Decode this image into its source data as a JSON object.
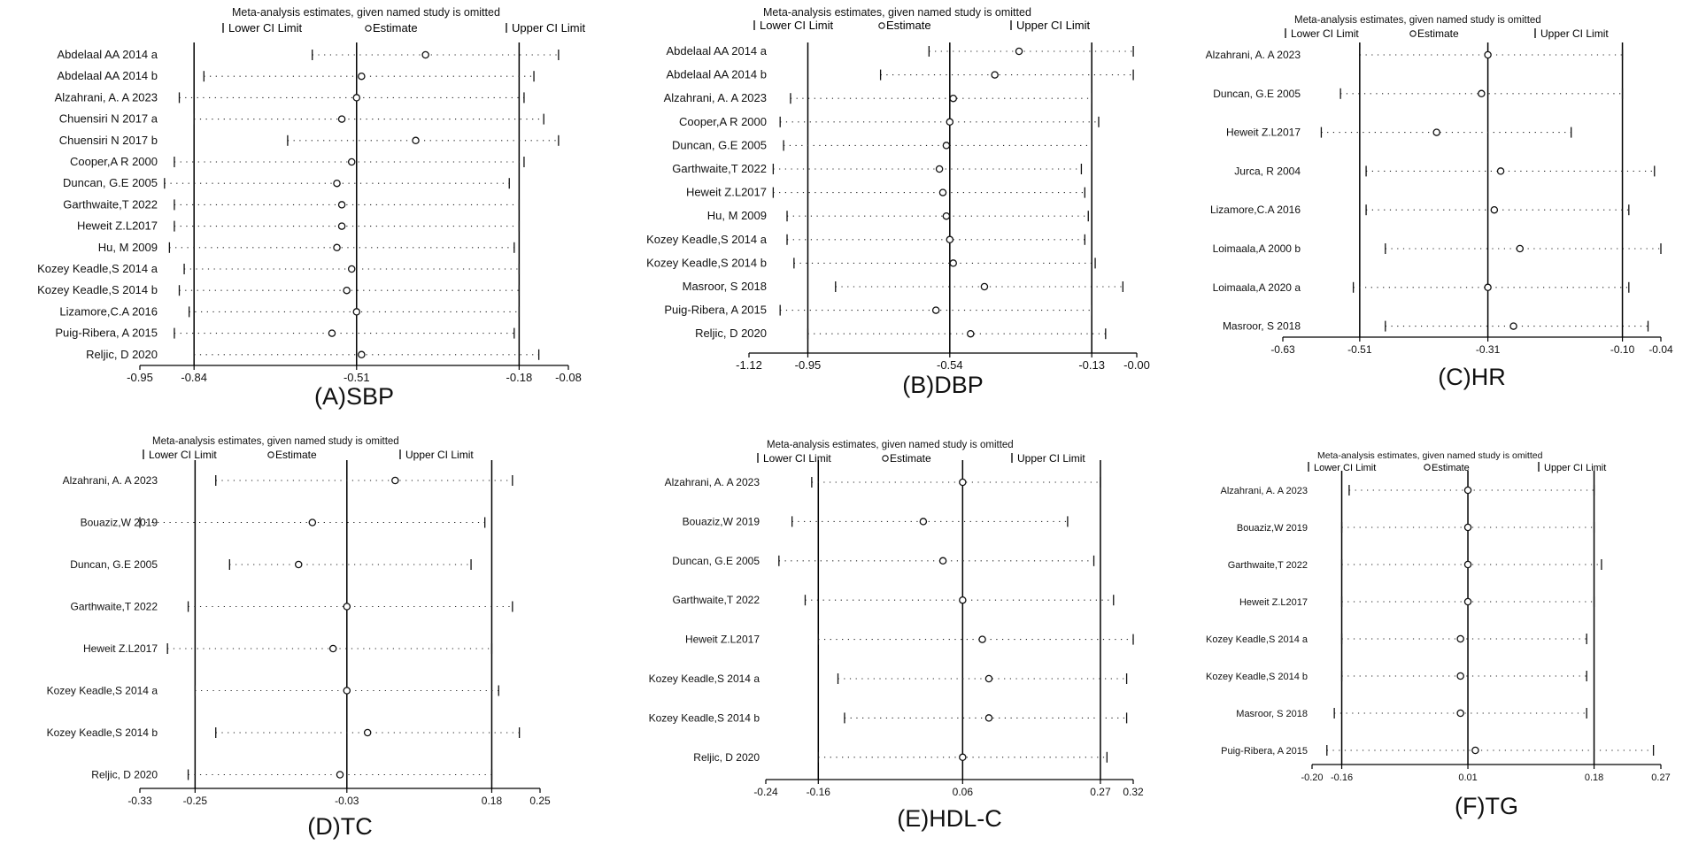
{
  "figure": {
    "header": "Meta-analysis estimates, given named study is omitted",
    "legend": {
      "lower": "Lower CI Limit",
      "estimate": "Estimate",
      "upper": "Upper CI Limit"
    }
  },
  "chart_data": [
    {
      "type": "scatter",
      "panel_label": "(A)SBP",
      "xlim": [
        -0.95,
        -0.08
      ],
      "xticks": [
        -0.95,
        -0.84,
        -0.51,
        -0.18,
        -0.08
      ],
      "xtick_labels": [
        "-0.95",
        "-0.84",
        "-0.51",
        "-0.18",
        "-0.08"
      ],
      "reference_lines": [
        -0.84,
        -0.51,
        -0.18
      ],
      "studies": [
        {
          "label": "Abdelaal AA 2014 a",
          "lower": -0.6,
          "estimate": -0.37,
          "upper": -0.1
        },
        {
          "label": "Abdelaal AA 2014 b",
          "lower": -0.82,
          "estimate": -0.5,
          "upper": -0.15
        },
        {
          "label": "Alzahrani, A. A 2023",
          "lower": -0.87,
          "estimate": -0.51,
          "upper": -0.17
        },
        {
          "label": "Chuensiri N 2017 a",
          "lower": -0.84,
          "estimate": -0.54,
          "upper": -0.13
        },
        {
          "label": "Chuensiri N 2017 b",
          "lower": -0.65,
          "estimate": -0.39,
          "upper": -0.1
        },
        {
          "label": "Cooper,A R 2000",
          "lower": -0.88,
          "estimate": -0.52,
          "upper": -0.17
        },
        {
          "label": "Duncan, G.E 2005",
          "lower": -0.9,
          "estimate": -0.55,
          "upper": -0.2
        },
        {
          "label": "Garthwaite,T 2022",
          "lower": -0.88,
          "estimate": -0.54,
          "upper": -0.18
        },
        {
          "label": "Heweit Z.L2017",
          "lower": -0.88,
          "estimate": -0.54,
          "upper": -0.18
        },
        {
          "label": "Hu, M 2009",
          "lower": -0.89,
          "estimate": -0.55,
          "upper": -0.19
        },
        {
          "label": "Kozey Keadle,S 2014 a",
          "lower": -0.86,
          "estimate": -0.52,
          "upper": -0.18
        },
        {
          "label": "Kozey Keadle,S 2014 b",
          "lower": -0.87,
          "estimate": -0.53,
          "upper": -0.18
        },
        {
          "label": "Lizamore,C.A 2016",
          "lower": -0.85,
          "estimate": -0.51,
          "upper": -0.18
        },
        {
          "label": "Puig-Ribera, A 2015",
          "lower": -0.88,
          "estimate": -0.56,
          "upper": -0.19
        },
        {
          "label": "Reljic, D 2020",
          "lower": -0.84,
          "estimate": -0.5,
          "upper": -0.14
        }
      ]
    },
    {
      "type": "scatter",
      "panel_label": "(B)DBP",
      "xlim": [
        -1.12,
        0.0
      ],
      "xticks": [
        -1.12,
        -0.95,
        -0.54,
        -0.13,
        0.0
      ],
      "xtick_labels": [
        "-1.12",
        "-0.95",
        "-0.54",
        "-0.13",
        "-0.00"
      ],
      "reference_lines": [
        -0.95,
        -0.54,
        -0.13
      ],
      "studies": [
        {
          "label": "Abdelaal AA 2014 a",
          "lower": -0.6,
          "estimate": -0.34,
          "upper": -0.01
        },
        {
          "label": "Abdelaal AA 2014 b",
          "lower": -0.74,
          "estimate": -0.41,
          "upper": -0.01
        },
        {
          "label": "Alzahrani, A. A 2023",
          "lower": -1.0,
          "estimate": -0.53,
          "upper": -0.13
        },
        {
          "label": "Cooper,A R 2000",
          "lower": -1.03,
          "estimate": -0.54,
          "upper": -0.11
        },
        {
          "label": "Duncan, G.E 2005",
          "lower": -1.02,
          "estimate": -0.55,
          "upper": -0.13
        },
        {
          "label": "Garthwaite,T 2022",
          "lower": -1.05,
          "estimate": -0.57,
          "upper": -0.16
        },
        {
          "label": "Heweit Z.L2017",
          "lower": -1.05,
          "estimate": -0.56,
          "upper": -0.15
        },
        {
          "label": "Hu, M 2009",
          "lower": -1.01,
          "estimate": -0.55,
          "upper": -0.14
        },
        {
          "label": "Kozey Keadle,S 2014 a",
          "lower": -1.01,
          "estimate": -0.54,
          "upper": -0.15
        },
        {
          "label": "Kozey Keadle,S 2014 b",
          "lower": -0.99,
          "estimate": -0.53,
          "upper": -0.12
        },
        {
          "label": "Masroor, S 2018",
          "lower": -0.87,
          "estimate": -0.44,
          "upper": -0.04
        },
        {
          "label": "Puig-Ribera, A 2015",
          "lower": -1.03,
          "estimate": -0.58,
          "upper": -0.13
        },
        {
          "label": "Reljic, D 2020",
          "lower": -0.95,
          "estimate": -0.48,
          "upper": -0.09
        }
      ]
    },
    {
      "type": "scatter",
      "panel_label": "(C)HR",
      "xlim": [
        -0.63,
        -0.04
      ],
      "xticks": [
        -0.63,
        -0.51,
        -0.31,
        -0.1,
        -0.04
      ],
      "xtick_labels": [
        "-0.63",
        "-0.51",
        "-0.31",
        "-0.10",
        "-0.04"
      ],
      "reference_lines": [
        -0.51,
        -0.31,
        -0.1
      ],
      "studies": [
        {
          "label": "Alzahrani, A. A 2023",
          "lower": -0.51,
          "estimate": -0.31,
          "upper": -0.1
        },
        {
          "label": "Duncan, G.E 2005",
          "lower": -0.54,
          "estimate": -0.32,
          "upper": -0.1
        },
        {
          "label": "Heweit Z.L2017",
          "lower": -0.57,
          "estimate": -0.39,
          "upper": -0.18
        },
        {
          "label": "Jurca, R 2004",
          "lower": -0.5,
          "estimate": -0.29,
          "upper": -0.05
        },
        {
          "label": "Lizamore,C.A 2016",
          "lower": -0.5,
          "estimate": -0.3,
          "upper": -0.09
        },
        {
          "label": "Loimaala,A 2000 b",
          "lower": -0.47,
          "estimate": -0.26,
          "upper": -0.04
        },
        {
          "label": "Loimaala,A 2020 a",
          "lower": -0.52,
          "estimate": -0.31,
          "upper": -0.09
        },
        {
          "label": "Masroor, S 2018",
          "lower": -0.47,
          "estimate": -0.27,
          "upper": -0.06
        }
      ]
    },
    {
      "type": "scatter",
      "panel_label": "(D)TC",
      "xlim": [
        -0.33,
        0.25
      ],
      "xticks": [
        -0.33,
        -0.25,
        -0.03,
        0.18,
        0.25
      ],
      "xtick_labels": [
        "-0.33",
        "-0.25",
        "-0.03",
        "0.18",
        "0.25"
      ],
      "reference_lines": [
        -0.25,
        -0.03,
        0.18
      ],
      "studies": [
        {
          "label": "Alzahrani, A. A 2023",
          "lower": -0.22,
          "estimate": 0.04,
          "upper": 0.21
        },
        {
          "label": "Bouaziz,W 2019",
          "lower": -0.33,
          "estimate": -0.08,
          "upper": 0.17
        },
        {
          "label": "Duncan, G.E 2005",
          "lower": -0.2,
          "estimate": -0.1,
          "upper": 0.15
        },
        {
          "label": "Garthwaite,T 2022",
          "lower": -0.26,
          "estimate": -0.03,
          "upper": 0.21
        },
        {
          "label": "Heweit Z.L2017",
          "lower": -0.29,
          "estimate": -0.05,
          "upper": 0.18
        },
        {
          "label": "Kozey Keadle,S 2014 a",
          "lower": -0.25,
          "estimate": -0.03,
          "upper": 0.19
        },
        {
          "label": "Kozey Keadle,S 2014 b",
          "lower": -0.22,
          "estimate": 0.0,
          "upper": 0.22
        },
        {
          "label": "Reljic, D 2020",
          "lower": -0.26,
          "estimate": -0.04,
          "upper": 0.18
        }
      ]
    },
    {
      "type": "scatter",
      "panel_label": "(E)HDL-C",
      "xlim": [
        -0.24,
        0.32
      ],
      "xticks": [
        -0.24,
        -0.16,
        0.06,
        0.27,
        0.32
      ],
      "xtick_labels": [
        "-0.24",
        "-0.16",
        "0.06",
        "0.27",
        "0.32"
      ],
      "reference_lines": [
        -0.16,
        0.06,
        0.27
      ],
      "studies": [
        {
          "label": "Alzahrani, A. A 2023",
          "lower": -0.17,
          "estimate": 0.06,
          "upper": 0.27
        },
        {
          "label": "Bouaziz,W 2019",
          "lower": -0.2,
          "estimate": 0.0,
          "upper": 0.22
        },
        {
          "label": "Duncan, G.E 2005",
          "lower": -0.22,
          "estimate": 0.03,
          "upper": 0.26
        },
        {
          "label": "Garthwaite,T 2022",
          "lower": -0.18,
          "estimate": 0.06,
          "upper": 0.29
        },
        {
          "label": "Heweit Z.L2017",
          "lower": -0.16,
          "estimate": 0.09,
          "upper": 0.32
        },
        {
          "label": "Kozey Keadle,S 2014 a",
          "lower": -0.13,
          "estimate": 0.1,
          "upper": 0.31
        },
        {
          "label": "Kozey Keadle,S 2014 b",
          "lower": -0.12,
          "estimate": 0.1,
          "upper": 0.31
        },
        {
          "label": "Reljic, D 2020",
          "lower": -0.16,
          "estimate": 0.06,
          "upper": 0.28
        }
      ]
    },
    {
      "type": "scatter",
      "panel_label": "(F)TG",
      "xlim": [
        -0.2,
        0.27
      ],
      "xticks": [
        -0.2,
        -0.16,
        0.01,
        0.18,
        0.27
      ],
      "xtick_labels": [
        "-0.20",
        "-0.16",
        "0.01",
        "0.18",
        "0.27"
      ],
      "reference_lines": [
        -0.16,
        0.01,
        0.18
      ],
      "studies": [
        {
          "label": "Alzahrani, A. A 2023",
          "lower": -0.15,
          "estimate": 0.01,
          "upper": 0.18
        },
        {
          "label": "Bouaziz,W 2019",
          "lower": -0.16,
          "estimate": 0.01,
          "upper": 0.18
        },
        {
          "label": "Garthwaite,T 2022",
          "lower": -0.16,
          "estimate": 0.01,
          "upper": 0.19
        },
        {
          "label": "Heweit Z.L2017",
          "lower": -0.16,
          "estimate": 0.01,
          "upper": 0.18
        },
        {
          "label": "Kozey Keadle,S 2014 a",
          "lower": -0.16,
          "estimate": 0.0,
          "upper": 0.17
        },
        {
          "label": "Kozey Keadle,S 2014 b",
          "lower": -0.16,
          "estimate": 0.0,
          "upper": 0.17
        },
        {
          "label": "Masroor, S 2018",
          "lower": -0.17,
          "estimate": 0.0,
          "upper": 0.17
        },
        {
          "label": "Puig-Ribera, A 2015",
          "lower": -0.18,
          "estimate": 0.02,
          "upper": 0.26
        }
      ]
    }
  ]
}
